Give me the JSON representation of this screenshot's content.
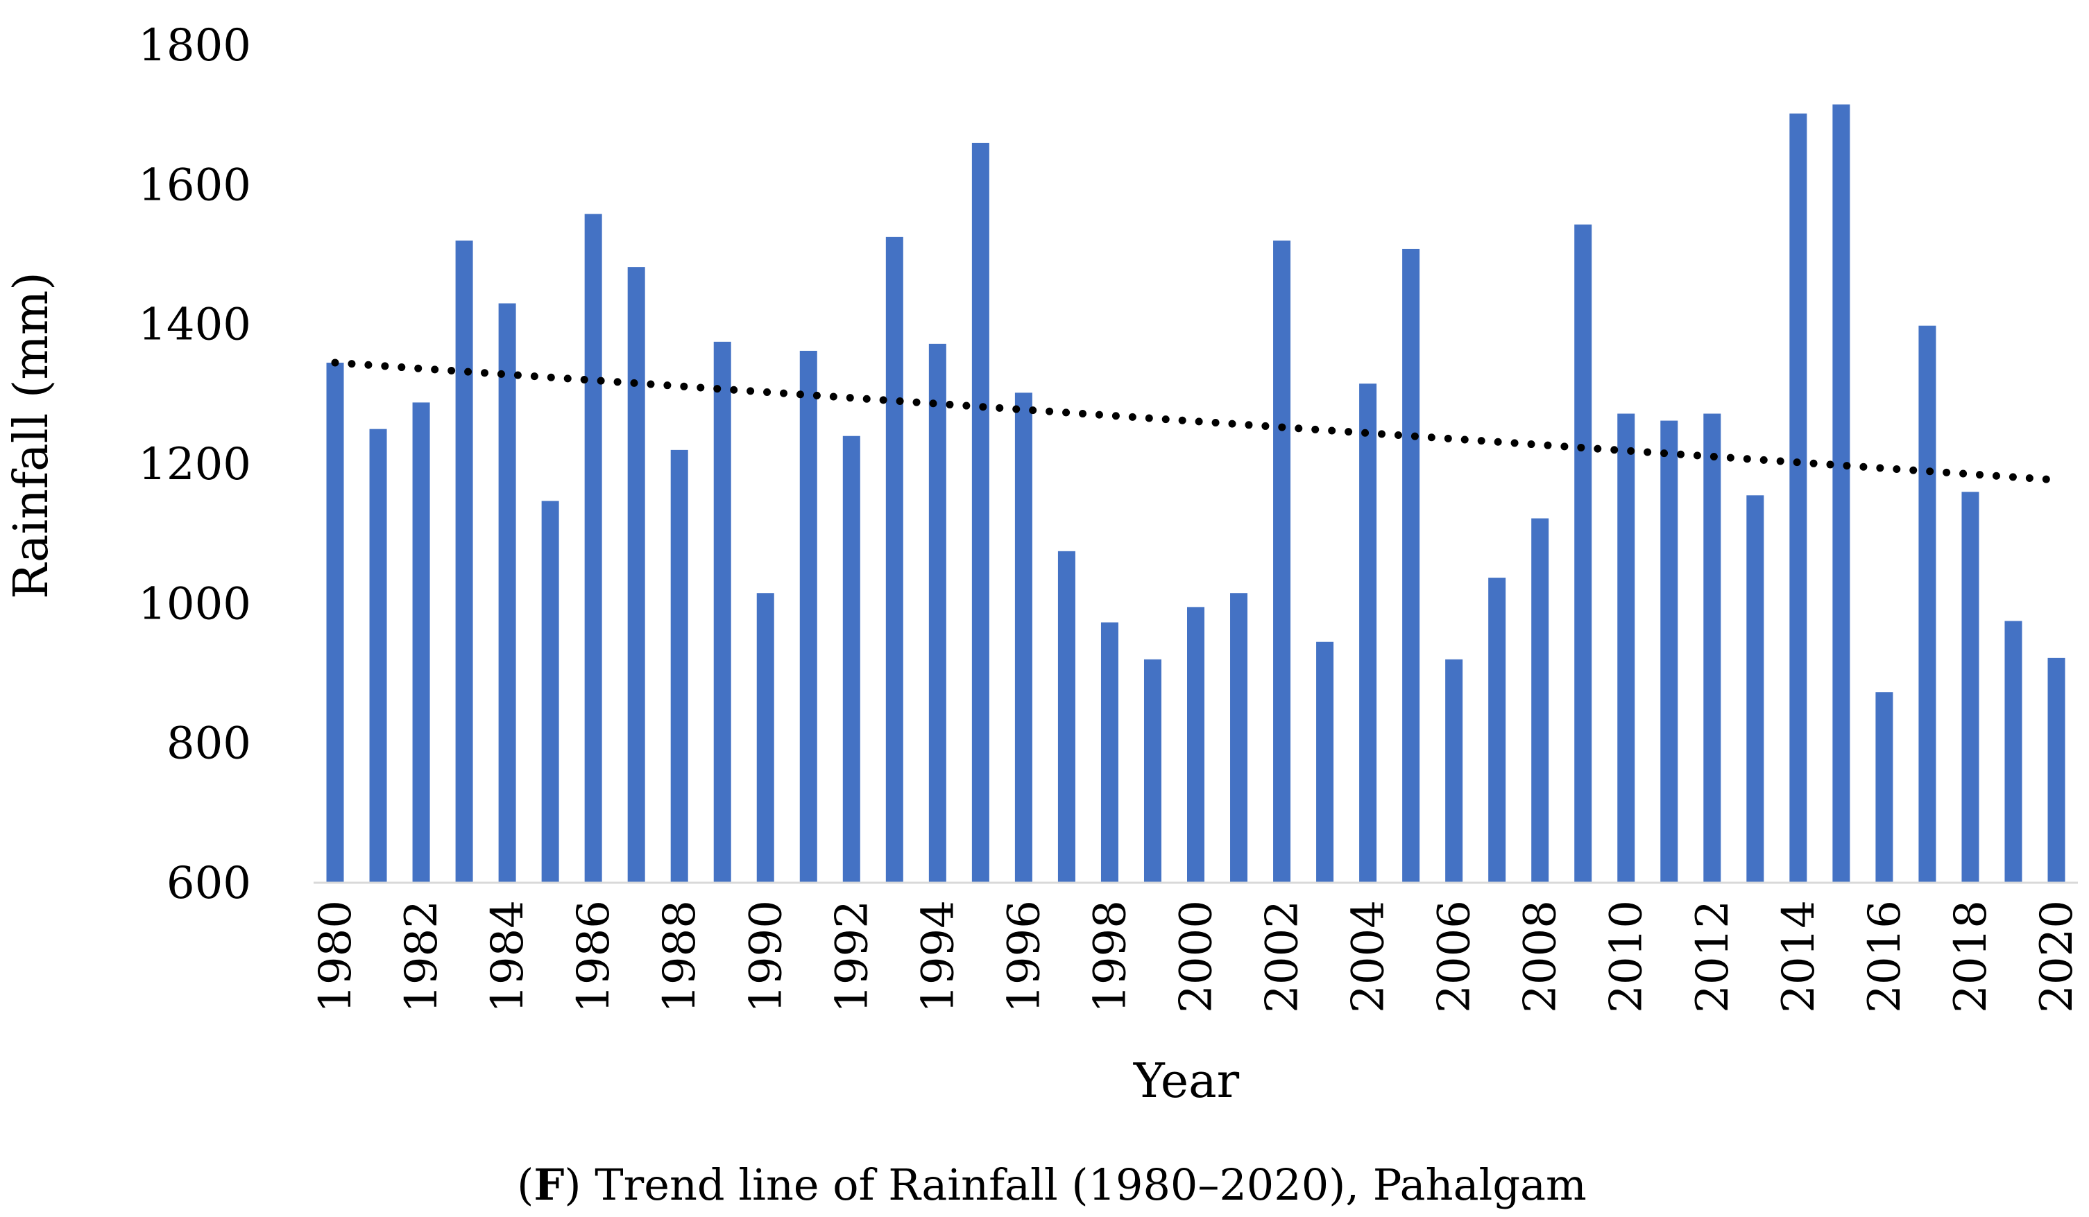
{
  "chart_data": {
    "type": "bar",
    "xlabel": "Year",
    "ylabel": "Rainfall (mm)",
    "ylim": [
      600,
      1800
    ],
    "yticks": [
      600,
      800,
      1000,
      1200,
      1400,
      1600,
      1800
    ],
    "categories": [
      1980,
      1981,
      1982,
      1983,
      1984,
      1985,
      1986,
      1987,
      1988,
      1989,
      1990,
      1991,
      1992,
      1993,
      1994,
      1995,
      1996,
      1997,
      1998,
      1999,
      2000,
      2001,
      2002,
      2003,
      2004,
      2005,
      2006,
      2007,
      2008,
      2009,
      2010,
      2011,
      2012,
      2013,
      2014,
      2015,
      2016,
      2017,
      2018,
      2019,
      2020
    ],
    "tick_labels": [
      "1980",
      "1982",
      "1984",
      "1986",
      "1988",
      "1990",
      "1992",
      "1994",
      "1996",
      "1998",
      "2000",
      "2002",
      "2004",
      "2006",
      "2008",
      "2010",
      "2012",
      "2014",
      "2016",
      "2018",
      "2020"
    ],
    "values": [
      1345,
      1250,
      1288,
      1520,
      1430,
      1147,
      1558,
      1482,
      1220,
      1375,
      1015,
      1362,
      1240,
      1525,
      1372,
      1660,
      1302,
      1075,
      973,
      920,
      995,
      1015,
      1520,
      945,
      1315,
      1508,
      920,
      1037,
      1122,
      1543,
      1272,
      1262,
      1272,
      1155,
      1702,
      1715,
      873,
      1398,
      1160,
      975,
      922
    ],
    "bar_color": "#4472C4",
    "trendline": {
      "type": "linear",
      "style": "dotted",
      "color": "#000000",
      "start": [
        1980,
        1345
      ],
      "end": [
        2020,
        1177
      ]
    },
    "grid": false,
    "legend": "none"
  },
  "caption": {
    "label": "F",
    "open": "(",
    "rest": ") Trend line of Rainfall (1980–2020), Pahalgam"
  }
}
